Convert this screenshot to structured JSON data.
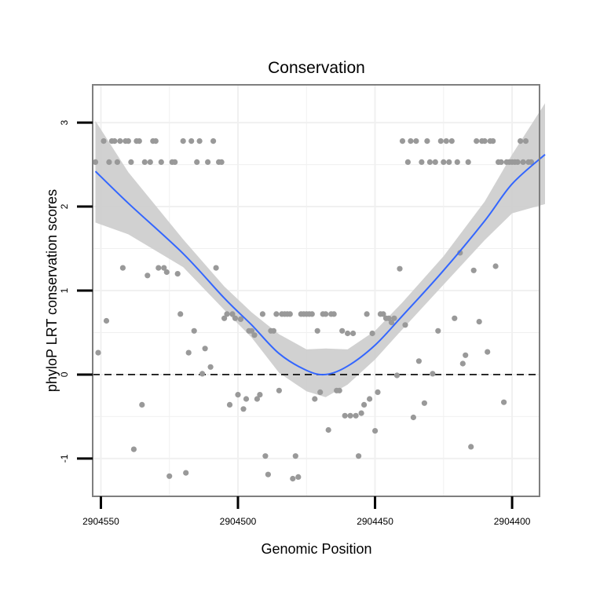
{
  "chart_data": {
    "type": "scatter",
    "title": "Conservation",
    "xlabel": "Genomic Position",
    "ylabel": "phyloP LRT conservation scores",
    "x_reversed": true,
    "xlim": [
      2904553,
      2904390
    ],
    "ylim": [
      -1.45,
      3.45
    ],
    "x_ticks": [
      2904550,
      2904500,
      2904450,
      2904400
    ],
    "x_tick_labels": [
      "2904550",
      "2904500",
      "2904450",
      "2904400"
    ],
    "y_ticks": [
      -1,
      0,
      1,
      2,
      3
    ],
    "y_tick_labels": [
      "-1",
      "0",
      "1",
      "2",
      "3"
    ],
    "grid": true,
    "reference_line": {
      "y": 0,
      "style": "dashed"
    },
    "colors": {
      "points": "#999999",
      "smooth_line": "#3366ff",
      "ribbon": "#cccccc",
      "panel_border": "#7f7f7f",
      "grid": "#f0f0f0",
      "reference": "#000000"
    },
    "points": [
      {
        "x": 2904552,
        "y": 2.53
      },
      {
        "x": 2904551,
        "y": 0.26
      },
      {
        "x": 2904549,
        "y": 2.78
      },
      {
        "x": 2904548,
        "y": 0.64
      },
      {
        "x": 2904547,
        "y": 2.53
      },
      {
        "x": 2904546,
        "y": 2.78
      },
      {
        "x": 2904545,
        "y": 2.78
      },
      {
        "x": 2904544,
        "y": 2.53
      },
      {
        "x": 2904543,
        "y": 2.78
      },
      {
        "x": 2904542,
        "y": 1.27
      },
      {
        "x": 2904541,
        "y": 2.78
      },
      {
        "x": 2904540,
        "y": 2.78
      },
      {
        "x": 2904539,
        "y": 2.53
      },
      {
        "x": 2904538,
        "y": -0.89
      },
      {
        "x": 2904537,
        "y": 2.78
      },
      {
        "x": 2904536,
        "y": 2.78
      },
      {
        "x": 2904535,
        "y": -0.36
      },
      {
        "x": 2904534,
        "y": 2.53
      },
      {
        "x": 2904533,
        "y": 1.18
      },
      {
        "x": 2904532,
        "y": 2.53
      },
      {
        "x": 2904531,
        "y": 2.78
      },
      {
        "x": 2904530,
        "y": 2.78
      },
      {
        "x": 2904529,
        "y": 1.27
      },
      {
        "x": 2904528,
        "y": 2.53
      },
      {
        "x": 2904527,
        "y": 1.27
      },
      {
        "x": 2904526,
        "y": 1.22
      },
      {
        "x": 2904525,
        "y": -1.21
      },
      {
        "x": 2904524,
        "y": 2.53
      },
      {
        "x": 2904523,
        "y": 2.53
      },
      {
        "x": 2904522,
        "y": 1.2
      },
      {
        "x": 2904521,
        "y": 0.72
      },
      {
        "x": 2904520,
        "y": 2.78
      },
      {
        "x": 2904519,
        "y": -1.17
      },
      {
        "x": 2904518,
        "y": 0.26
      },
      {
        "x": 2904517,
        "y": 2.78
      },
      {
        "x": 2904516,
        "y": 0.52
      },
      {
        "x": 2904515,
        "y": 2.53
      },
      {
        "x": 2904514,
        "y": 2.78
      },
      {
        "x": 2904513,
        "y": 0.01
      },
      {
        "x": 2904512,
        "y": 0.31
      },
      {
        "x": 2904511,
        "y": 2.53
      },
      {
        "x": 2904510,
        "y": 0.09
      },
      {
        "x": 2904509,
        "y": 2.78
      },
      {
        "x": 2904508,
        "y": 1.27
      },
      {
        "x": 2904507,
        "y": 2.53
      },
      {
        "x": 2904506,
        "y": 2.53
      },
      {
        "x": 2904505,
        "y": 0.67
      },
      {
        "x": 2904504,
        "y": 0.72
      },
      {
        "x": 2904503,
        "y": -0.36
      },
      {
        "x": 2904502,
        "y": 0.72
      },
      {
        "x": 2904501,
        "y": 0.67
      },
      {
        "x": 2904500,
        "y": -0.24
      },
      {
        "x": 2904499,
        "y": 0.66
      },
      {
        "x": 2904498,
        "y": -0.41
      },
      {
        "x": 2904497,
        "y": -0.29
      },
      {
        "x": 2904496,
        "y": 0.52
      },
      {
        "x": 2904495,
        "y": 0.52
      },
      {
        "x": 2904494,
        "y": 0.47
      },
      {
        "x": 2904493,
        "y": -0.29
      },
      {
        "x": 2904492,
        "y": -0.24
      },
      {
        "x": 2904491,
        "y": 0.72
      },
      {
        "x": 2904490,
        "y": -0.97
      },
      {
        "x": 2904489,
        "y": -1.19
      },
      {
        "x": 2904488,
        "y": 0.52
      },
      {
        "x": 2904487,
        "y": 0.52
      },
      {
        "x": 2904486,
        "y": 0.72
      },
      {
        "x": 2904485,
        "y": -0.19
      },
      {
        "x": 2904484,
        "y": 0.72
      },
      {
        "x": 2904483,
        "y": 0.72
      },
      {
        "x": 2904482,
        "y": 0.72
      },
      {
        "x": 2904481,
        "y": 0.72
      },
      {
        "x": 2904480,
        "y": -1.24
      },
      {
        "x": 2904479,
        "y": -0.97
      },
      {
        "x": 2904478,
        "y": -1.22
      },
      {
        "x": 2904477,
        "y": 0.72
      },
      {
        "x": 2904476,
        "y": 0.72
      },
      {
        "x": 2904475,
        "y": 0.72
      },
      {
        "x": 2904474,
        "y": 0.72
      },
      {
        "x": 2904473,
        "y": 0.72
      },
      {
        "x": 2904472,
        "y": -0.29
      },
      {
        "x": 2904471,
        "y": 0.52
      },
      {
        "x": 2904470,
        "y": -0.21
      },
      {
        "x": 2904469,
        "y": 0.72
      },
      {
        "x": 2904468,
        "y": 0.72
      },
      {
        "x": 2904467,
        "y": -0.66
      },
      {
        "x": 2904466,
        "y": 0.72
      },
      {
        "x": 2904465,
        "y": 0.72
      },
      {
        "x": 2904464,
        "y": -0.19
      },
      {
        "x": 2904463,
        "y": -0.19
      },
      {
        "x": 2904462,
        "y": 0.52
      },
      {
        "x": 2904461,
        "y": -0.49
      },
      {
        "x": 2904460,
        "y": 0.49
      },
      {
        "x": 2904459,
        "y": -0.49
      },
      {
        "x": 2904458,
        "y": 0.49
      },
      {
        "x": 2904457,
        "y": -0.49
      },
      {
        "x": 2904456,
        "y": -0.97
      },
      {
        "x": 2904455,
        "y": -0.46
      },
      {
        "x": 2904454,
        "y": -0.36
      },
      {
        "x": 2904453,
        "y": 0.72
      },
      {
        "x": 2904452,
        "y": -0.29
      },
      {
        "x": 2904451,
        "y": 0.49
      },
      {
        "x": 2904450,
        "y": -0.67
      },
      {
        "x": 2904449,
        "y": -0.21
      },
      {
        "x": 2904448,
        "y": 0.72
      },
      {
        "x": 2904447,
        "y": 0.72
      },
      {
        "x": 2904446,
        "y": 0.67
      },
      {
        "x": 2904445,
        "y": 0.67
      },
      {
        "x": 2904444,
        "y": 0.62
      },
      {
        "x": 2904443,
        "y": 0.67
      },
      {
        "x": 2904442,
        "y": -0.01
      },
      {
        "x": 2904441,
        "y": 1.26
      },
      {
        "x": 2904440,
        "y": 2.78
      },
      {
        "x": 2904439,
        "y": 0.59
      },
      {
        "x": 2904438,
        "y": 2.53
      },
      {
        "x": 2904437,
        "y": 2.78
      },
      {
        "x": 2904436,
        "y": -0.51
      },
      {
        "x": 2904435,
        "y": 2.78
      },
      {
        "x": 2904434,
        "y": 0.16
      },
      {
        "x": 2904433,
        "y": 2.53
      },
      {
        "x": 2904432,
        "y": -0.34
      },
      {
        "x": 2904431,
        "y": 2.78
      },
      {
        "x": 2904430,
        "y": 2.53
      },
      {
        "x": 2904429,
        "y": 0.01
      },
      {
        "x": 2904428,
        "y": 2.53
      },
      {
        "x": 2904427,
        "y": 0.52
      },
      {
        "x": 2904426,
        "y": 2.78
      },
      {
        "x": 2904425,
        "y": 2.53
      },
      {
        "x": 2904424,
        "y": 2.78
      },
      {
        "x": 2904423,
        "y": 2.53
      },
      {
        "x": 2904422,
        "y": 2.78
      },
      {
        "x": 2904421,
        "y": 0.67
      },
      {
        "x": 2904420,
        "y": 2.53
      },
      {
        "x": 2904419,
        "y": 1.45
      },
      {
        "x": 2904418,
        "y": 0.13
      },
      {
        "x": 2904417,
        "y": 0.23
      },
      {
        "x": 2904416,
        "y": 2.53
      },
      {
        "x": 2904415,
        "y": -0.86
      },
      {
        "x": 2904414,
        "y": 1.24
      },
      {
        "x": 2904413,
        "y": 2.78
      },
      {
        "x": 2904412,
        "y": 0.63
      },
      {
        "x": 2904411,
        "y": 2.78
      },
      {
        "x": 2904410,
        "y": 2.78
      },
      {
        "x": 2904409,
        "y": 0.27
      },
      {
        "x": 2904408,
        "y": 2.78
      },
      {
        "x": 2904407,
        "y": 2.78
      },
      {
        "x": 2904406,
        "y": 1.29
      },
      {
        "x": 2904405,
        "y": 2.53
      },
      {
        "x": 2904404,
        "y": 2.53
      },
      {
        "x": 2904403,
        "y": -0.33
      },
      {
        "x": 2904402,
        "y": 2.53
      },
      {
        "x": 2904401,
        "y": 2.53
      },
      {
        "x": 2904400,
        "y": 2.53
      },
      {
        "x": 2904399,
        "y": 2.53
      },
      {
        "x": 2904398,
        "y": 2.53
      },
      {
        "x": 2904397,
        "y": 2.78
      },
      {
        "x": 2904396,
        "y": 2.53
      },
      {
        "x": 2904395,
        "y": 2.78
      },
      {
        "x": 2904394,
        "y": 2.53
      },
      {
        "x": 2904393,
        "y": 2.53
      }
    ],
    "smooth": [
      {
        "x": 2904552,
        "y": 2.42,
        "lo": 1.81,
        "hi": 3.02
      },
      {
        "x": 2904540,
        "y": 2.04,
        "lo": 1.67,
        "hi": 2.41
      },
      {
        "x": 2904520,
        "y": 1.44,
        "lo": 1.28,
        "hi": 1.61
      },
      {
        "x": 2904505,
        "y": 0.91,
        "lo": 0.77,
        "hi": 1.05
      },
      {
        "x": 2904495,
        "y": 0.59,
        "lo": 0.44,
        "hi": 0.74
      },
      {
        "x": 2904485,
        "y": 0.25,
        "lo": 0.02,
        "hi": 0.48
      },
      {
        "x": 2904475,
        "y": 0.05,
        "lo": -0.2,
        "hi": 0.3
      },
      {
        "x": 2904468,
        "y": 0.0,
        "lo": -0.27,
        "hi": 0.31
      },
      {
        "x": 2904460,
        "y": 0.1,
        "lo": -0.12,
        "hi": 0.3
      },
      {
        "x": 2904450,
        "y": 0.35,
        "lo": 0.18,
        "hi": 0.52
      },
      {
        "x": 2904440,
        "y": 0.7,
        "lo": 0.54,
        "hi": 0.86
      },
      {
        "x": 2904425,
        "y": 1.24,
        "lo": 1.07,
        "hi": 1.41
      },
      {
        "x": 2904410,
        "y": 1.83,
        "lo": 1.6,
        "hi": 2.06
      },
      {
        "x": 2904400,
        "y": 2.27,
        "lo": 1.92,
        "hi": 2.62
      },
      {
        "x": 2904388,
        "y": 2.62,
        "lo": 2.03,
        "hi": 3.23
      }
    ]
  }
}
